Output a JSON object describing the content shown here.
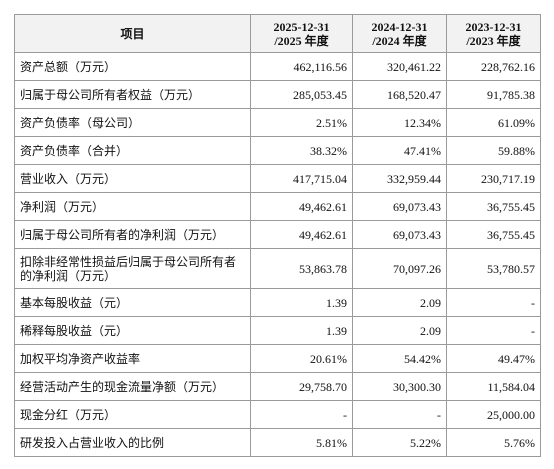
{
  "table": {
    "header": {
      "item": "项目",
      "columns": [
        {
          "date": "2025-12-31",
          "period": "/2025 年度"
        },
        {
          "date": "2024-12-31",
          "period": "/2024 年度"
        },
        {
          "date": "2023-12-31",
          "period": "/2023 年度"
        }
      ]
    },
    "rows": [
      [
        "资产总额（万元）",
        "462,116.56",
        "320,461.22",
        "228,762.16"
      ],
      [
        "归属于母公司所有者权益（万元）",
        "285,053.45",
        "168,520.47",
        "91,785.38"
      ],
      [
        "资产负债率（母公司）",
        "2.51%",
        "12.34%",
        "61.09%"
      ],
      [
        "资产负债率（合并）",
        "38.32%",
        "47.41%",
        "59.88%"
      ],
      [
        "营业收入（万元）",
        "417,715.04",
        "332,959.44",
        "230,717.19"
      ],
      [
        "净利润（万元）",
        "49,462.61",
        "69,073.43",
        "36,755.45"
      ],
      [
        "归属于母公司所有者的净利润（万元）",
        "49,462.61",
        "69,073.43",
        "36,755.45"
      ],
      [
        "扣除非经常性损益后归属于母公司所有者的净利润（万元）",
        "53,863.78",
        "70,097.26",
        "53,780.57"
      ],
      [
        "基本每股收益（元）",
        "1.39",
        "2.09",
        "-"
      ],
      [
        "稀释每股收益（元）",
        "1.39",
        "2.09",
        "-"
      ],
      [
        "加权平均净资产收益率",
        "20.61%",
        "54.42%",
        "49.47%"
      ],
      [
        "经营活动产生的现金流量净额（万元）",
        "29,758.70",
        "30,300.30",
        "11,584.04"
      ],
      [
        "现金分红（万元）",
        "-",
        "-",
        "25,000.00"
      ],
      [
        "研发投入占营业收入的比例",
        "5.81%",
        "5.22%",
        "5.76%"
      ]
    ]
  }
}
